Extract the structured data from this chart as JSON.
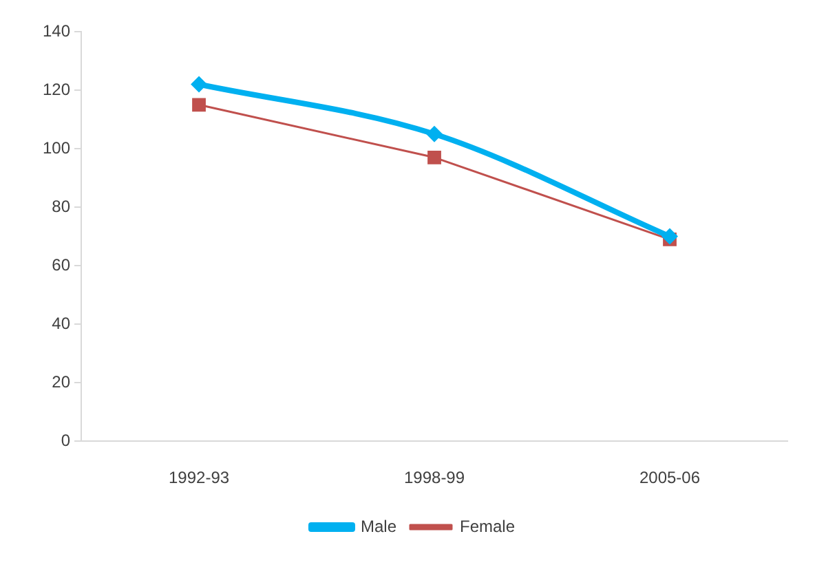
{
  "chart_data": {
    "type": "line",
    "categories": [
      "1992-93",
      "1998-99",
      "2005-06"
    ],
    "series": [
      {
        "name": "Male",
        "color": "#00b0f0",
        "values": [
          122,
          105,
          70
        ],
        "marker": "diamond"
      },
      {
        "name": "Female",
        "color": "#c0504d",
        "values": [
          115,
          97,
          69
        ],
        "marker": "square"
      }
    ],
    "ylim": [
      0,
      140
    ],
    "yticks": [
      0,
      20,
      40,
      60,
      80,
      100,
      120,
      140
    ],
    "grid": false,
    "legend": "bottom"
  }
}
